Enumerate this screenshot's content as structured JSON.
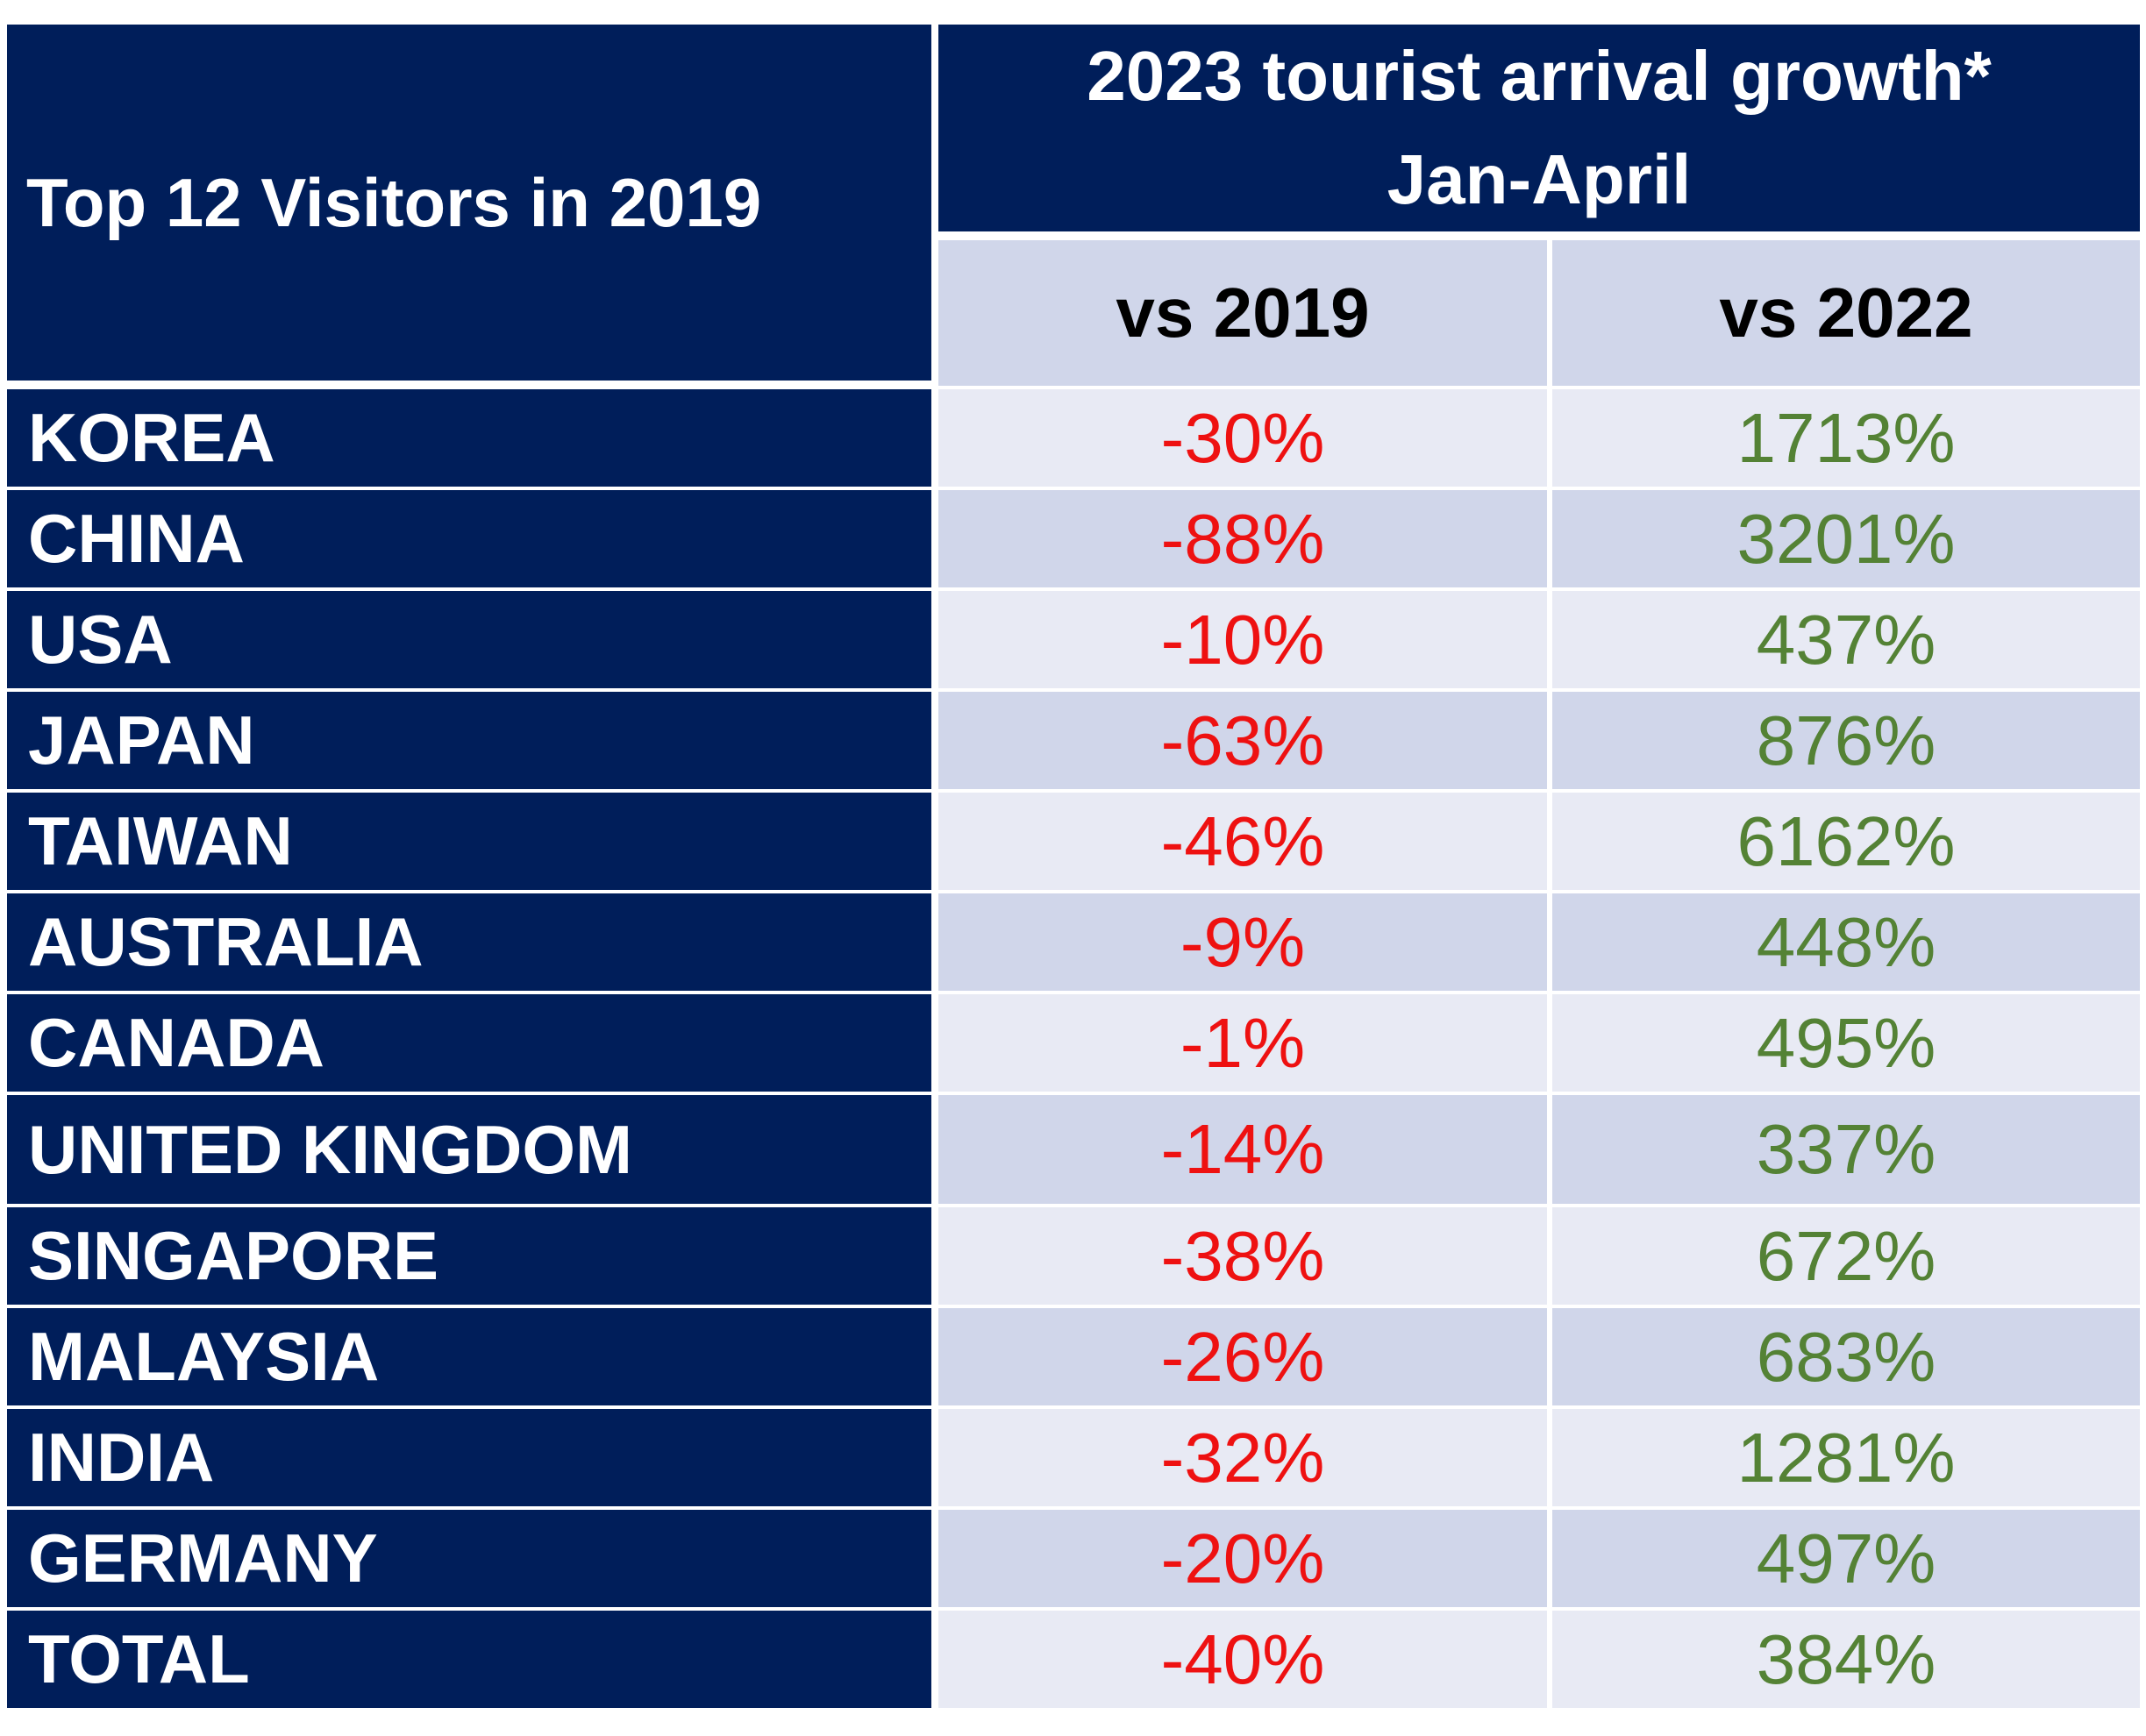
{
  "header": {
    "left_title": "Top 12 Visitors in 2019",
    "growth_title_line1": "2023 tourist arrival growth*",
    "growth_title_line2": "Jan-April",
    "col_vs_2019": "vs 2019",
    "col_vs_2022": "vs 2022"
  },
  "rows": [
    {
      "country": "KOREA",
      "vs2019": "-30%",
      "vs2022": "1713%"
    },
    {
      "country": "CHINA",
      "vs2019": "-88%",
      "vs2022": "3201%"
    },
    {
      "country": "USA",
      "vs2019": "-10%",
      "vs2022": "437%"
    },
    {
      "country": "JAPAN",
      "vs2019": "-63%",
      "vs2022": "876%"
    },
    {
      "country": "TAIWAN",
      "vs2019": "-46%",
      "vs2022": "6162%"
    },
    {
      "country": "AUSTRALIA",
      "vs2019": "-9%",
      "vs2022": "448%"
    },
    {
      "country": "CANADA",
      "vs2019": "-1%",
      "vs2022": "495%"
    },
    {
      "country": "UNITED KINGDOM",
      "vs2019": "-14%",
      "vs2022": "337%"
    },
    {
      "country": "SINGAPORE",
      "vs2019": "-38%",
      "vs2022": "672%"
    },
    {
      "country": "MALAYSIA",
      "vs2019": "-26%",
      "vs2022": "683%"
    },
    {
      "country": "INDIA",
      "vs2019": "-32%",
      "vs2022": "1281%"
    },
    {
      "country": "GERMANY",
      "vs2019": "-20%",
      "vs2022": "497%"
    },
    {
      "country": "TOTAL",
      "vs2019": "-40%",
      "vs2022": "384%"
    }
  ],
  "colors": {
    "header_navy": "#001e5a",
    "negative_red": "#ee1111",
    "positive_green": "#548235",
    "row_light": "#e8eaf4",
    "row_shaded": "#d0d6ea"
  }
}
